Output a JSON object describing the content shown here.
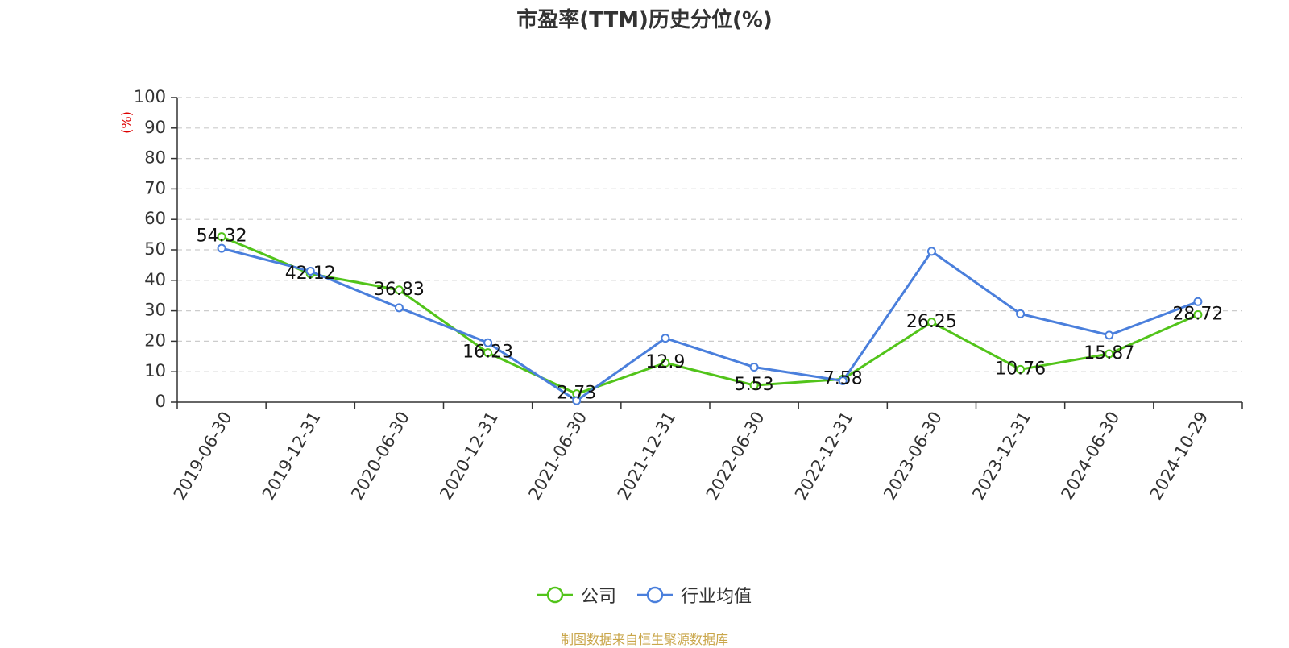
{
  "chart_data": {
    "type": "line",
    "title": "市盈率(TTM)历史分位(%)",
    "ylabel": "(%)",
    "xlabel": "",
    "ylim": [
      0,
      100
    ],
    "yticks": [
      0,
      10,
      20,
      30,
      40,
      50,
      60,
      70,
      80,
      90,
      100
    ],
    "grid": true,
    "legend_position": "bottom",
    "categories": [
      "2019-06-30",
      "2019-12-31",
      "2020-06-30",
      "2020-12-31",
      "2021-06-30",
      "2021-12-31",
      "2022-06-30",
      "2022-12-31",
      "2023-06-30",
      "2023-12-31",
      "2024-06-30",
      "2024-10-29"
    ],
    "series": [
      {
        "name": "公司",
        "color": "#52c41a",
        "values": [
          54.32,
          42.12,
          36.83,
          16.23,
          2.73,
          12.9,
          5.53,
          7.58,
          26.25,
          10.76,
          15.87,
          28.72
        ],
        "labels": [
          "54.32",
          "42.12",
          "36.83",
          "16.23",
          "2.73",
          "12.9",
          "5.53",
          "7.58",
          "26.25",
          "10.76",
          "15.87",
          "28.72"
        ]
      },
      {
        "name": "行业均值",
        "color": "#4a7fdc",
        "values": [
          50.5,
          43.0,
          31.0,
          19.5,
          0.5,
          21.0,
          11.5,
          7.0,
          49.5,
          29.0,
          22.0,
          33.0
        ]
      }
    ]
  },
  "footer": {
    "source": "制图数据来自恒生聚源数据库"
  }
}
